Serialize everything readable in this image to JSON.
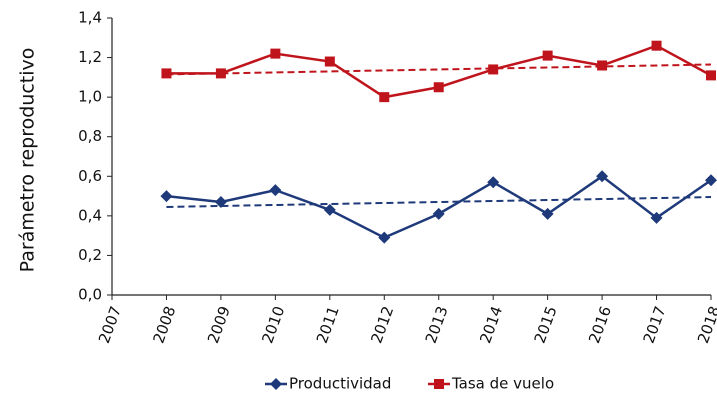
{
  "chart_data": {
    "type": "line",
    "y_label": "Parámetro reproductivo",
    "x": [
      2008,
      2009,
      2010,
      2011,
      2012,
      2013,
      2014,
      2015,
      2016,
      2017,
      2018
    ],
    "xlim": [
      2007,
      2018
    ],
    "xticks": [
      2007,
      2008,
      2009,
      2010,
      2011,
      2012,
      2013,
      2014,
      2015,
      2016,
      2017,
      2018
    ],
    "ylim": [
      0,
      1.4
    ],
    "yticks": [
      {
        "value": 0,
        "label": "0,0"
      },
      {
        "value": 0.2,
        "label": "0,2"
      },
      {
        "value": 0.4,
        "label": "0,4"
      },
      {
        "value": 0.6,
        "label": "0,6"
      },
      {
        "value": 0.8,
        "label": "0,8"
      },
      {
        "value": 1.0,
        "label": "1,0"
      },
      {
        "value": 1.2,
        "label": "1,2"
      },
      {
        "value": 1.4,
        "label": "1,4"
      }
    ],
    "grid": false,
    "legend": "bottom",
    "series": [
      {
        "name": "Productividad",
        "color": "#1f3a7a",
        "marker": "diamond",
        "values": [
          0.5,
          0.47,
          0.53,
          0.43,
          0.29,
          0.41,
          0.57,
          0.41,
          0.6,
          0.39,
          0.58
        ],
        "trend": {
          "x": [
            2008,
            2018
          ],
          "values": [
            0.445,
            0.495
          ]
        }
      },
      {
        "name": "Tasa de vuelo",
        "color": "#c0141c",
        "marker": "square",
        "values": [
          1.12,
          1.12,
          1.22,
          1.18,
          1.0,
          1.05,
          1.14,
          1.21,
          1.16,
          1.26,
          1.11
        ],
        "trend": {
          "x": [
            2008,
            2018
          ],
          "values": [
            1.115,
            1.165
          ]
        }
      }
    ]
  }
}
